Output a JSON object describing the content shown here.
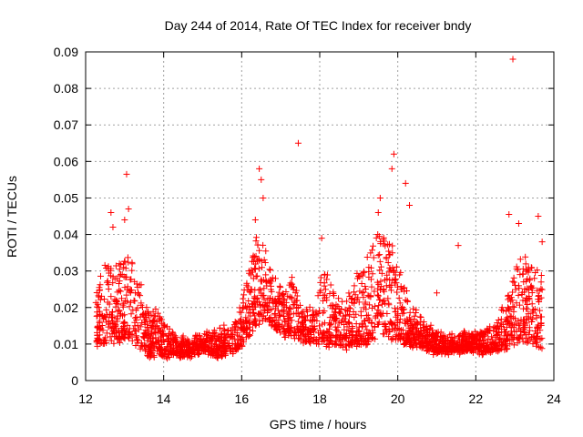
{
  "chart_data": {
    "type": "scatter",
    "title": "Day 244 of 2014, Rate Of TEC Index for receiver bndy",
    "xlabel": "GPS time / hours",
    "ylabel": "ROTI / TECUs",
    "xlim": [
      12,
      24
    ],
    "ylim": [
      0,
      0.09
    ],
    "xticks": [
      "12",
      "14",
      "16",
      "18",
      "20",
      "22",
      "24"
    ],
    "yticks": [
      "0",
      "0.01",
      "0.02",
      "0.03",
      "0.04",
      "0.05",
      "0.06",
      "0.07",
      "0.08",
      "0.09"
    ],
    "grid": true,
    "marker": "plus",
    "colors": {
      "series": "#ff0000",
      "axes": "#000000",
      "grid": "#a0a0a0"
    },
    "series": [
      {
        "name": "ROTI",
        "envelope": {
          "x": [
            12.25,
            12.5,
            12.7,
            12.9,
            13.1,
            13.3,
            13.6,
            13.9,
            14.2,
            14.6,
            15.0,
            15.4,
            15.8,
            16.0,
            16.2,
            16.4,
            16.6,
            16.8,
            17.0,
            17.3,
            17.6,
            17.9,
            18.1,
            18.4,
            18.7,
            19.0,
            19.3,
            19.5,
            19.7,
            19.9,
            20.1,
            20.3,
            20.6,
            20.9,
            21.2,
            21.6,
            22.0,
            22.4,
            22.7,
            22.9,
            23.1,
            23.3,
            23.5,
            23.7
          ],
          "lo": [
            0.01,
            0.01,
            0.011,
            0.011,
            0.012,
            0.01,
            0.007,
            0.007,
            0.007,
            0.007,
            0.008,
            0.007,
            0.008,
            0.01,
            0.013,
            0.016,
            0.017,
            0.015,
            0.013,
            0.012,
            0.011,
            0.01,
            0.01,
            0.01,
            0.009,
            0.01,
            0.011,
            0.012,
            0.013,
            0.011,
            0.01,
            0.01,
            0.009,
            0.008,
            0.008,
            0.008,
            0.008,
            0.008,
            0.009,
            0.01,
            0.011,
            0.011,
            0.01,
            0.009
          ],
          "hi": [
            0.022,
            0.034,
            0.03,
            0.032,
            0.035,
            0.03,
            0.02,
            0.018,
            0.013,
            0.012,
            0.013,
            0.014,
            0.016,
            0.022,
            0.03,
            0.04,
            0.036,
            0.029,
            0.026,
            0.03,
            0.018,
            0.022,
            0.032,
            0.023,
            0.024,
            0.03,
            0.036,
            0.042,
            0.041,
            0.036,
            0.03,
            0.022,
            0.017,
            0.014,
            0.013,
            0.013,
            0.013,
            0.014,
            0.02,
            0.025,
            0.035,
            0.037,
            0.032,
            0.028
          ]
        },
        "outliers": [
          {
            "x": 12.65,
            "y": 0.046
          },
          {
            "x": 12.7,
            "y": 0.042
          },
          {
            "x": 13.0,
            "y": 0.044
          },
          {
            "x": 13.05,
            "y": 0.0565
          },
          {
            "x": 13.1,
            "y": 0.047
          },
          {
            "x": 16.35,
            "y": 0.044
          },
          {
            "x": 16.45,
            "y": 0.058
          },
          {
            "x": 16.5,
            "y": 0.055
          },
          {
            "x": 16.55,
            "y": 0.05
          },
          {
            "x": 17.45,
            "y": 0.065
          },
          {
            "x": 18.05,
            "y": 0.039
          },
          {
            "x": 19.5,
            "y": 0.046
          },
          {
            "x": 19.55,
            "y": 0.05
          },
          {
            "x": 19.85,
            "y": 0.058
          },
          {
            "x": 19.9,
            "y": 0.062
          },
          {
            "x": 20.2,
            "y": 0.054
          },
          {
            "x": 20.3,
            "y": 0.048
          },
          {
            "x": 21.0,
            "y": 0.024
          },
          {
            "x": 21.55,
            "y": 0.037
          },
          {
            "x": 22.85,
            "y": 0.0455
          },
          {
            "x": 22.95,
            "y": 0.088
          },
          {
            "x": 23.1,
            "y": 0.043
          },
          {
            "x": 23.6,
            "y": 0.045
          },
          {
            "x": 23.7,
            "y": 0.038
          }
        ]
      }
    ]
  }
}
